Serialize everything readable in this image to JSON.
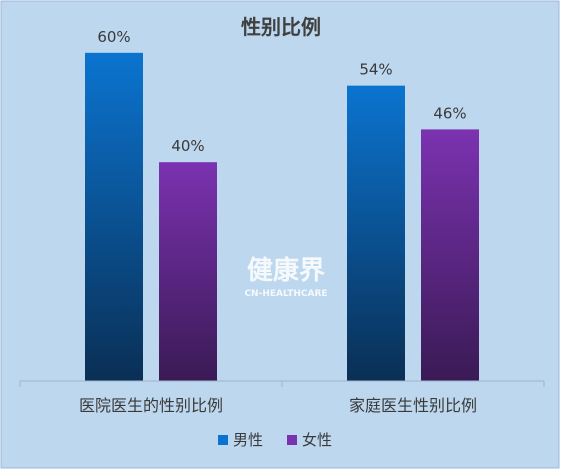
{
  "chart_data": {
    "type": "bar",
    "title": "性别比例",
    "categories": [
      "医院医生的性别比例",
      "家庭医生性别比例"
    ],
    "series": [
      {
        "name": "男性",
        "values": [
          60,
          54
        ],
        "labels": [
          "60%",
          "54%"
        ],
        "color": "#0B74D0"
      },
      {
        "name": "女性",
        "values": [
          40,
          46
        ],
        "labels": [
          "40%",
          "46%"
        ],
        "color": "#7B32B0"
      }
    ],
    "ylim": [
      0,
      66
    ],
    "grid": false,
    "legend_position": "bottom"
  },
  "watermark": {
    "text": "健康界",
    "subtext": "CN-HEALTHCARE"
  },
  "colors": {
    "background": "#BDD7EE",
    "male_top": "#0B74D0",
    "male_bottom": "#0A2F55",
    "female_top": "#7B32B0",
    "female_bottom": "#3A1A55",
    "text": "#3A3A3A"
  }
}
